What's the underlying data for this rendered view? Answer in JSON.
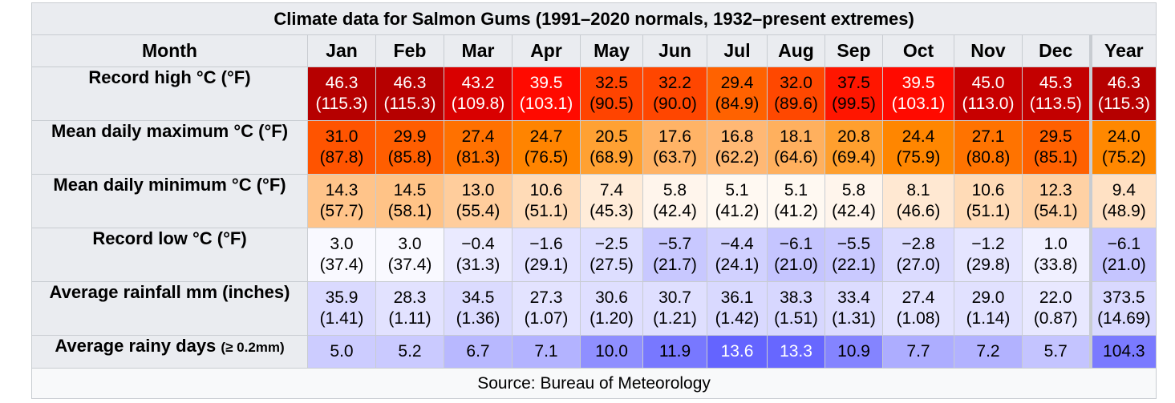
{
  "title": "Climate data for Salmon Gums (1991–2020 normals, 1932–present extremes)",
  "header": {
    "month_label": "Month",
    "months": [
      "Jan",
      "Feb",
      "Mar",
      "Apr",
      "May",
      "Jun",
      "Jul",
      "Aug",
      "Sep",
      "Oct",
      "Nov",
      "Dec"
    ],
    "year_label": "Year"
  },
  "rows": [
    {
      "label": "Record high °C (°F)",
      "label_small": "",
      "values": [
        {
          "primary": "46.3",
          "secondary": "(115.3)",
          "bg": "#b60000",
          "fg": "#ffffff"
        },
        {
          "primary": "46.3",
          "secondary": "(115.3)",
          "bg": "#b60000",
          "fg": "#ffffff"
        },
        {
          "primary": "43.2",
          "secondary": "(109.8)",
          "bg": "#d90000",
          "fg": "#ffffff"
        },
        {
          "primary": "39.5",
          "secondary": "(103.1)",
          "bg": "#ff0a00",
          "fg": "#ffffff"
        },
        {
          "primary": "32.5",
          "secondary": "(90.5)",
          "bg": "#ff4400",
          "fg": "#000000"
        },
        {
          "primary": "32.2",
          "secondary": "(90.0)",
          "bg": "#ff4600",
          "fg": "#000000"
        },
        {
          "primary": "29.4",
          "secondary": "(84.9)",
          "bg": "#ff6200",
          "fg": "#000000"
        },
        {
          "primary": "32.0",
          "secondary": "(89.6)",
          "bg": "#ff4800",
          "fg": "#000000"
        },
        {
          "primary": "37.5",
          "secondary": "(99.5)",
          "bg": "#ff1600",
          "fg": "#000000"
        },
        {
          "primary": "39.5",
          "secondary": "(103.1)",
          "bg": "#ff0a00",
          "fg": "#ffffff"
        },
        {
          "primary": "45.0",
          "secondary": "(113.0)",
          "bg": "#c70000",
          "fg": "#ffffff"
        },
        {
          "primary": "45.3",
          "secondary": "(113.5)",
          "bg": "#c30000",
          "fg": "#ffffff"
        }
      ],
      "year": {
        "primary": "46.3",
        "secondary": "(115.3)",
        "bg": "#b60000",
        "fg": "#ffffff"
      }
    },
    {
      "label": "Mean daily maximum °C (°F)",
      "label_small": "",
      "values": [
        {
          "primary": "31.0",
          "secondary": "(87.8)",
          "bg": "#ff5400",
          "fg": "#000000"
        },
        {
          "primary": "29.9",
          "secondary": "(85.8)",
          "bg": "#ff5e00",
          "fg": "#000000"
        },
        {
          "primary": "27.4",
          "secondary": "(81.3)",
          "bg": "#ff7100",
          "fg": "#000000"
        },
        {
          "primary": "24.7",
          "secondary": "(76.5)",
          "bg": "#ff8400",
          "fg": "#000000"
        },
        {
          "primary": "20.5",
          "secondary": "(68.9)",
          "bg": "#ffa133",
          "fg": "#000000"
        },
        {
          "primary": "17.6",
          "secondary": "(63.7)",
          "bg": "#ffb366",
          "fg": "#000000"
        },
        {
          "primary": "16.8",
          "secondary": "(62.2)",
          "bg": "#ffb874",
          "fg": "#000000"
        },
        {
          "primary": "18.1",
          "secondary": "(64.6)",
          "bg": "#ffb05e",
          "fg": "#000000"
        },
        {
          "primary": "20.8",
          "secondary": "(69.4)",
          "bg": "#ff9f2e",
          "fg": "#000000"
        },
        {
          "primary": "24.4",
          "secondary": "(75.9)",
          "bg": "#ff8600",
          "fg": "#000000"
        },
        {
          "primary": "27.1",
          "secondary": "(80.8)",
          "bg": "#ff7300",
          "fg": "#000000"
        },
        {
          "primary": "29.5",
          "secondary": "(85.1)",
          "bg": "#ff6100",
          "fg": "#000000"
        }
      ],
      "year": {
        "primary": "24.0",
        "secondary": "(75.2)",
        "bg": "#ff8800",
        "fg": "#000000"
      }
    },
    {
      "label": "Mean daily minimum °C (°F)",
      "label_small": "",
      "values": [
        {
          "primary": "14.3",
          "secondary": "(57.7)",
          "bg": "#ffc48a",
          "fg": "#000000"
        },
        {
          "primary": "14.5",
          "secondary": "(58.1)",
          "bg": "#ffc387",
          "fg": "#000000"
        },
        {
          "primary": "13.0",
          "secondary": "(55.4)",
          "bg": "#ffcd9c",
          "fg": "#000000"
        },
        {
          "primary": "10.6",
          "secondary": "(51.1)",
          "bg": "#ffdbb7",
          "fg": "#000000"
        },
        {
          "primary": "7.4",
          "secondary": "(45.3)",
          "bg": "#ffecd9",
          "fg": "#000000"
        },
        {
          "primary": "5.8",
          "secondary": "(42.4)",
          "bg": "#fff5ec",
          "fg": "#000000"
        },
        {
          "primary": "5.1",
          "secondary": "(41.2)",
          "bg": "#fff9f2",
          "fg": "#000000"
        },
        {
          "primary": "5.1",
          "secondary": "(41.2)",
          "bg": "#fff9f2",
          "fg": "#000000"
        },
        {
          "primary": "5.8",
          "secondary": "(42.4)",
          "bg": "#fff5ec",
          "fg": "#000000"
        },
        {
          "primary": "8.1",
          "secondary": "(46.6)",
          "bg": "#ffe8d2",
          "fg": "#000000"
        },
        {
          "primary": "10.6",
          "secondary": "(51.1)",
          "bg": "#ffdbb7",
          "fg": "#000000"
        },
        {
          "primary": "12.3",
          "secondary": "(54.1)",
          "bg": "#ffd1a4",
          "fg": "#000000"
        }
      ],
      "year": {
        "primary": "9.4",
        "secondary": "(48.9)",
        "bg": "#ffe1c4",
        "fg": "#000000"
      }
    },
    {
      "label": "Record low °C (°F)",
      "label_small": "",
      "values": [
        {
          "primary": "3.0",
          "secondary": "(37.4)",
          "bg": "#f9f9ff",
          "fg": "#000000"
        },
        {
          "primary": "3.0",
          "secondary": "(37.4)",
          "bg": "#f9f9ff",
          "fg": "#000000"
        },
        {
          "primary": "−0.4",
          "secondary": "(31.3)",
          "bg": "#eaeaff",
          "fg": "#000000"
        },
        {
          "primary": "−1.6",
          "secondary": "(29.1)",
          "bg": "#e2e2ff",
          "fg": "#000000"
        },
        {
          "primary": "−2.5",
          "secondary": "(27.5)",
          "bg": "#dddeff",
          "fg": "#000000"
        },
        {
          "primary": "−5.7",
          "secondary": "(21.7)",
          "bg": "#c8c8ff",
          "fg": "#000000"
        },
        {
          "primary": "−4.4",
          "secondary": "(24.1)",
          "bg": "#d1d1ff",
          "fg": "#000000"
        },
        {
          "primary": "−6.1",
          "secondary": "(21.0)",
          "bg": "#c5c5ff",
          "fg": "#000000"
        },
        {
          "primary": "−5.5",
          "secondary": "(22.1)",
          "bg": "#c9c9ff",
          "fg": "#000000"
        },
        {
          "primary": "−2.8",
          "secondary": "(27.0)",
          "bg": "#dbdbff",
          "fg": "#000000"
        },
        {
          "primary": "−1.2",
          "secondary": "(29.8)",
          "bg": "#e5e5ff",
          "fg": "#000000"
        },
        {
          "primary": "1.0",
          "secondary": "(33.8)",
          "bg": "#f0f0ff",
          "fg": "#000000"
        }
      ],
      "year": {
        "primary": "−6.1",
        "secondary": "(21.0)",
        "bg": "#c5c5ff",
        "fg": "#000000"
      }
    },
    {
      "label": "Average rainfall mm (inches)",
      "label_small": "",
      "values": [
        {
          "primary": "35.9",
          "secondary": "(1.41)",
          "bg": "#dadaff",
          "fg": "#000000"
        },
        {
          "primary": "28.3",
          "secondary": "(1.11)",
          "bg": "#e2e2ff",
          "fg": "#000000"
        },
        {
          "primary": "34.5",
          "secondary": "(1.36)",
          "bg": "#dbdbff",
          "fg": "#000000"
        },
        {
          "primary": "27.3",
          "secondary": "(1.07)",
          "bg": "#e3e3ff",
          "fg": "#000000"
        },
        {
          "primary": "30.6",
          "secondary": "(1.20)",
          "bg": "#dfdfff",
          "fg": "#000000"
        },
        {
          "primary": "30.7",
          "secondary": "(1.21)",
          "bg": "#dfdfff",
          "fg": "#000000"
        },
        {
          "primary": "36.1",
          "secondary": "(1.42)",
          "bg": "#d9d9ff",
          "fg": "#000000"
        },
        {
          "primary": "38.3",
          "secondary": "(1.51)",
          "bg": "#d7d7ff",
          "fg": "#000000"
        },
        {
          "primary": "33.4",
          "secondary": "(1.31)",
          "bg": "#dcdcff",
          "fg": "#000000"
        },
        {
          "primary": "27.4",
          "secondary": "(1.08)",
          "bg": "#e3e3ff",
          "fg": "#000000"
        },
        {
          "primary": "29.0",
          "secondary": "(1.14)",
          "bg": "#e1e1ff",
          "fg": "#000000"
        },
        {
          "primary": "22.0",
          "secondary": "(0.87)",
          "bg": "#e8e8ff",
          "fg": "#000000"
        }
      ],
      "year": {
        "primary": "373.5",
        "secondary": "(14.69)",
        "bg": "#d9d9ff",
        "fg": "#000000"
      }
    },
    {
      "label": "Average rainy days",
      "label_small": "(≥ 0.2mm)",
      "values": [
        {
          "primary": "5.0",
          "secondary": "",
          "bg": "#ccccff",
          "fg": "#000000"
        },
        {
          "primary": "5.2",
          "secondary": "",
          "bg": "#cacaff",
          "fg": "#000000"
        },
        {
          "primary": "6.7",
          "secondary": "",
          "bg": "#b8b8ff",
          "fg": "#000000"
        },
        {
          "primary": "7.1",
          "secondary": "",
          "bg": "#b3b3ff",
          "fg": "#000000"
        },
        {
          "primary": "10.0",
          "secondary": "",
          "bg": "#8f8fff",
          "fg": "#000000"
        },
        {
          "primary": "11.9",
          "secondary": "",
          "bg": "#7878ff",
          "fg": "#000000"
        },
        {
          "primary": "13.6",
          "secondary": "",
          "bg": "#6464ff",
          "fg": "#ffffff"
        },
        {
          "primary": "13.3",
          "secondary": "",
          "bg": "#6767ff",
          "fg": "#ffffff"
        },
        {
          "primary": "10.9",
          "secondary": "",
          "bg": "#8484ff",
          "fg": "#000000"
        },
        {
          "primary": "7.7",
          "secondary": "",
          "bg": "#adadff",
          "fg": "#000000"
        },
        {
          "primary": "7.2",
          "secondary": "",
          "bg": "#b2b2ff",
          "fg": "#000000"
        },
        {
          "primary": "5.7",
          "secondary": "",
          "bg": "#c4c4ff",
          "fg": "#000000"
        }
      ],
      "year": {
        "primary": "104.3",
        "secondary": "",
        "bg": "#7a7aff",
        "fg": "#000000"
      }
    }
  ],
  "source": "Source: Bureau of Meteorology"
}
